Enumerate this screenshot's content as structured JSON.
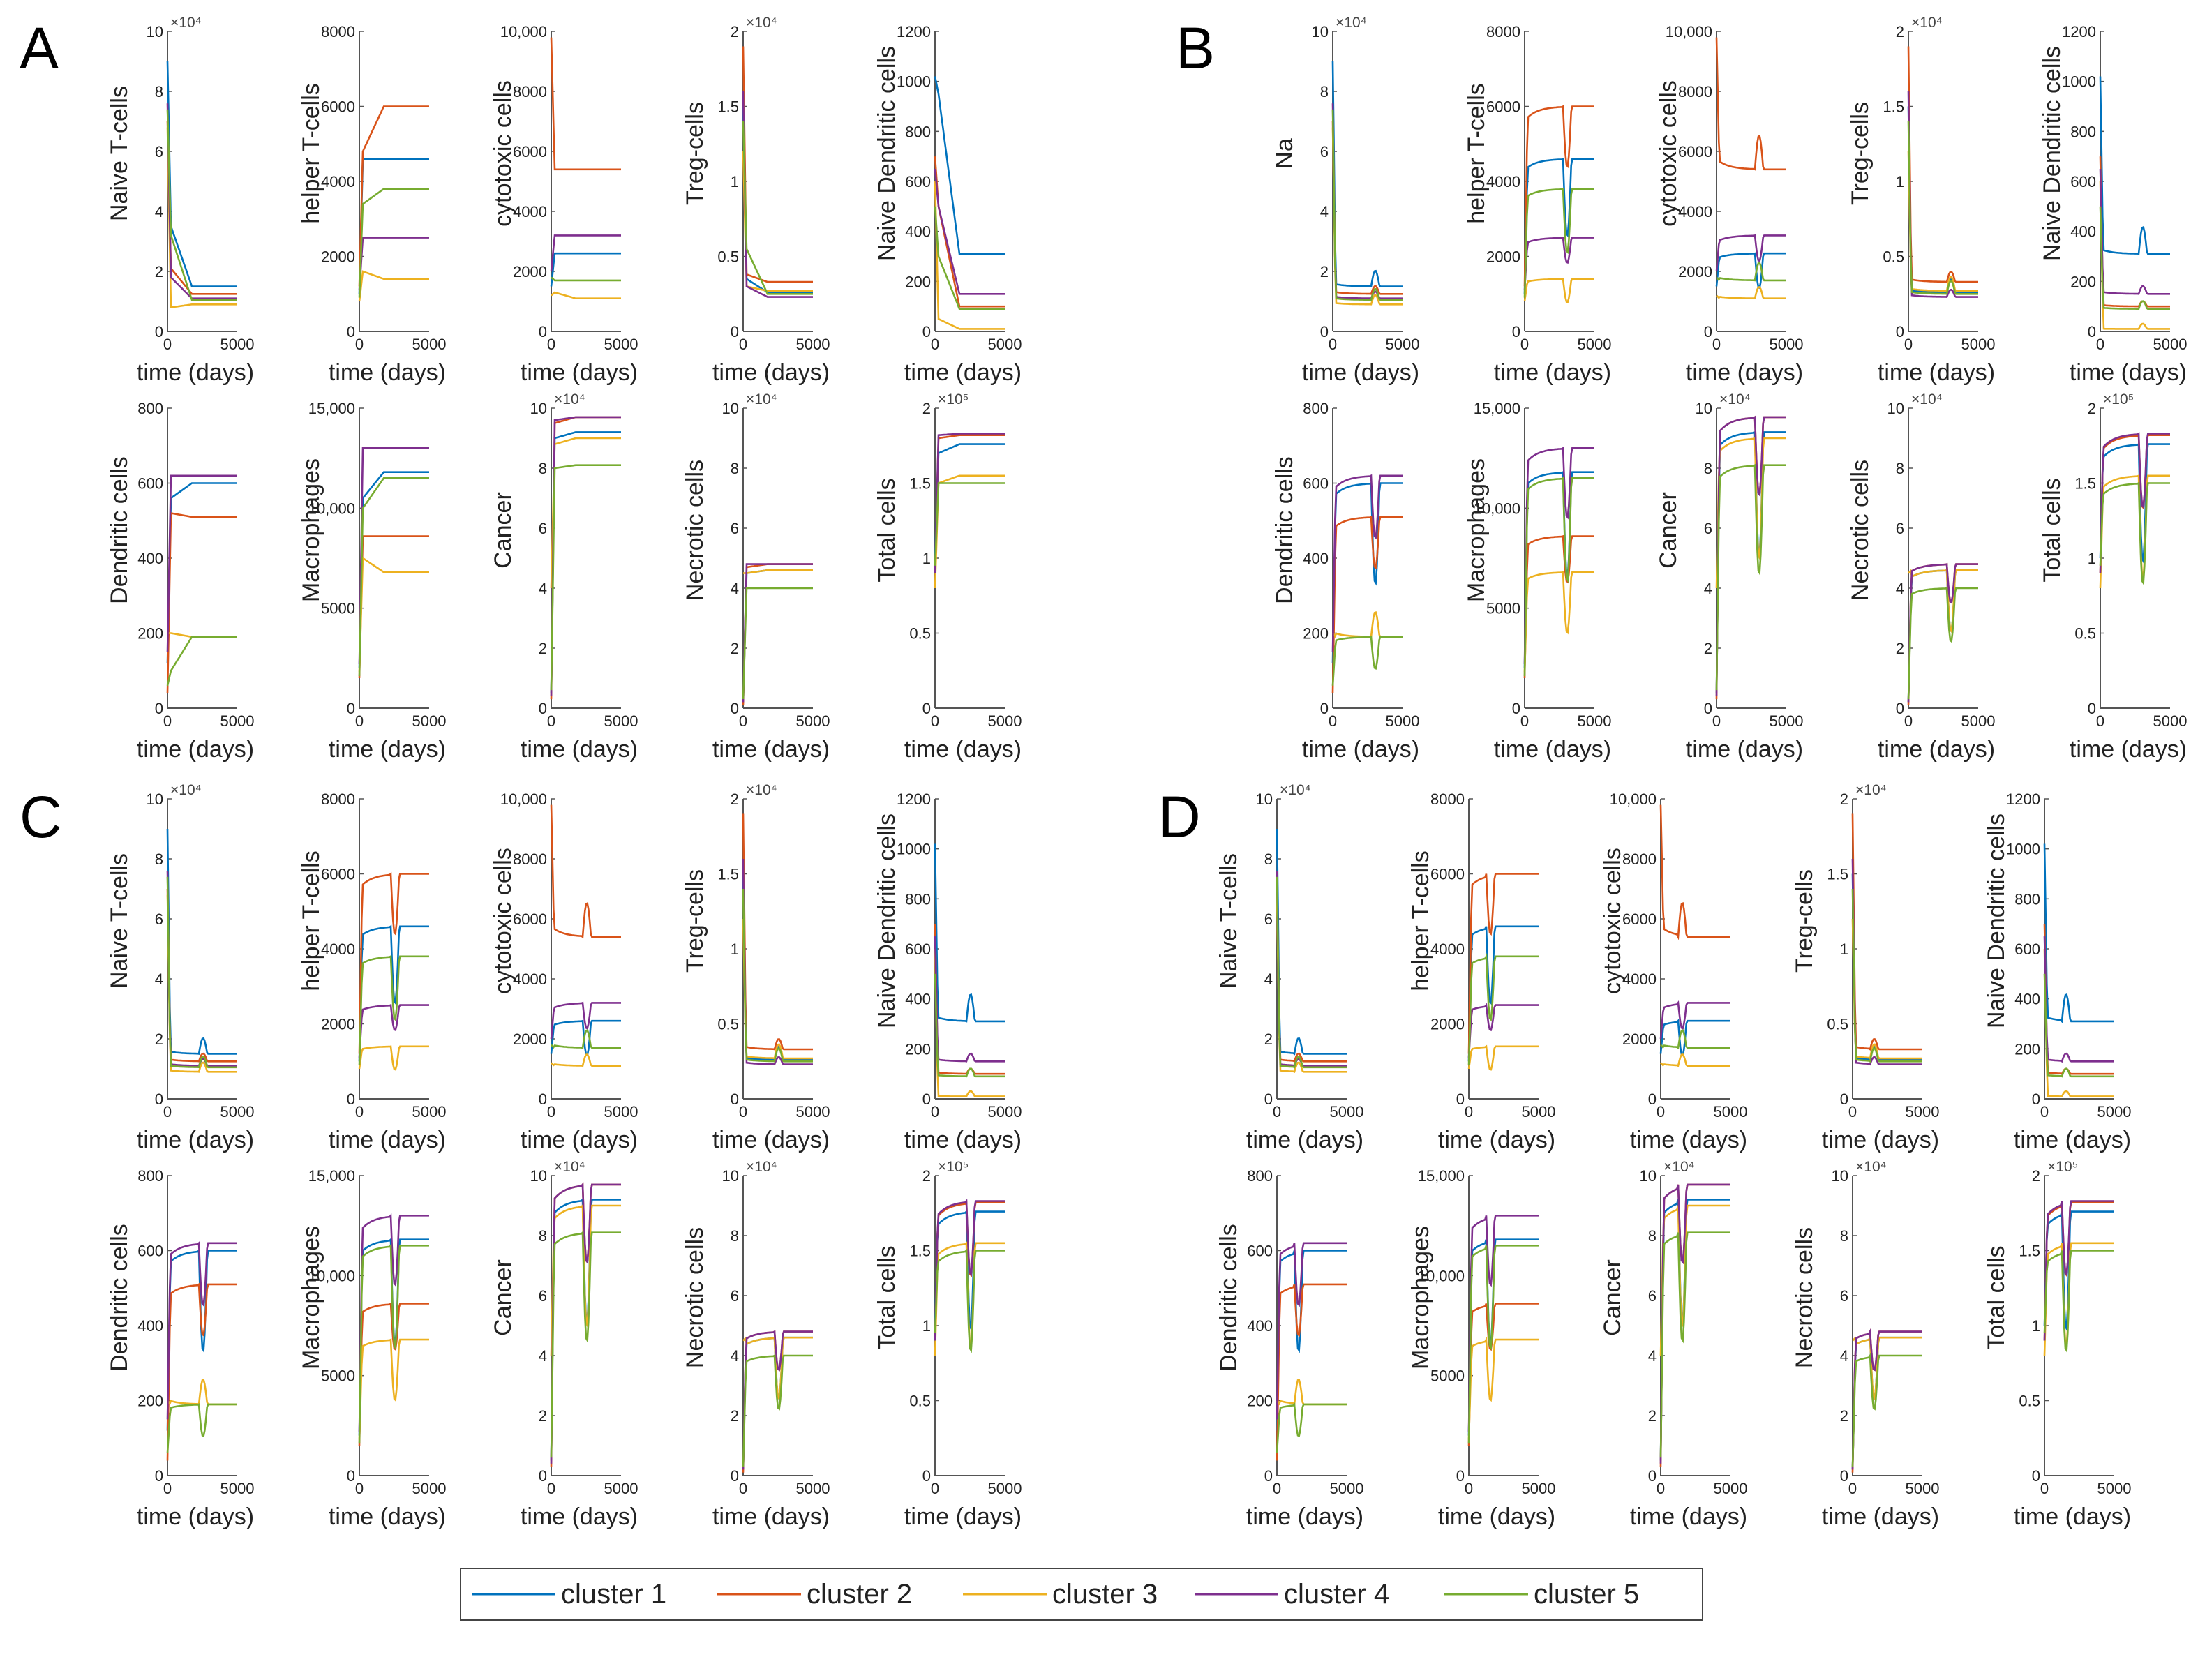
{
  "colors": {
    "cluster1": "#0072BD",
    "cluster2": "#D95319",
    "cluster3": "#EDB120",
    "cluster4": "#7E2F8E",
    "cluster5": "#77AC30"
  },
  "legend": [
    "cluster 1",
    "cluster 2",
    "cluster 3",
    "cluster 4",
    "cluster 5"
  ],
  "panel_labels": [
    "A",
    "B",
    "C",
    "D"
  ],
  "x_axis": {
    "label": "time (days)",
    "ticks": [
      "0",
      "5000"
    ],
    "range": [
      0,
      5000
    ]
  },
  "chart_data": {
    "type": "line",
    "panels": [
      "A",
      "B",
      "C",
      "D"
    ],
    "subplots": [
      {
        "key": "naive_t",
        "ylabel": "Naive T-cells",
        "ylabel_B": "Na",
        "ymax": 100000,
        "yticks": [
          "0",
          "2",
          "4",
          "6",
          "8",
          "10"
        ],
        "multiplier": "×10⁴",
        "start": [
          90000,
          70000,
          68000,
          76000,
          74000
        ],
        "steady": [
          15000,
          12500,
          9000,
          11000,
          10500
        ],
        "peakA": [
          35000,
          21000,
          8000,
          18000,
          32000
        ]
      },
      {
        "key": "helper_t",
        "ylabel": "helper T-cells",
        "ymax": 8000,
        "yticks": [
          "0",
          "2000",
          "4000",
          "6000",
          "8000"
        ],
        "multiplier": "",
        "start": [
          1000,
          1200,
          800,
          1100,
          900
        ],
        "steady": [
          4600,
          6000,
          1400,
          2500,
          3800
        ],
        "peakA": [
          4600,
          4800,
          1600,
          2500,
          3400
        ]
      },
      {
        "key": "cytotoxic",
        "ylabel": "cytotoxic cells",
        "ymax": 10000,
        "yticks": [
          "0",
          "2000",
          "4000",
          "6000",
          "8000",
          "10,000"
        ],
        "multiplier": "",
        "start": [
          1500,
          9800,
          1200,
          2000,
          1800
        ],
        "steady": [
          2600,
          5400,
          1100,
          3200,
          1700
        ],
        "peakA": [
          2600,
          5400,
          1300,
          3200,
          1700
        ]
      },
      {
        "key": "treg",
        "ylabel": "Treg-cells",
        "ymax": 20000,
        "yticks": [
          "0",
          "0.5",
          "1",
          "1.5",
          "2"
        ],
        "multiplier": "×10⁴",
        "start": [
          15000,
          19000,
          12000,
          16000,
          14000
        ],
        "steady": [
          2600,
          3300,
          2700,
          2300,
          2500
        ],
        "peakA": [
          3500,
          3800,
          3000,
          3000,
          5500
        ]
      },
      {
        "key": "naive_dc",
        "ylabel": "Naive Dendritic cells",
        "ymax": 1200,
        "yticks": [
          "0",
          "200",
          "400",
          "600",
          "800",
          "1000",
          "1200"
        ],
        "multiplier": "",
        "start": [
          1020,
          700,
          600,
          650,
          500
        ],
        "steady": [
          310,
          100,
          10,
          150,
          90
        ],
        "peakA": [
          950,
          500,
          50,
          500,
          300
        ]
      },
      {
        "key": "dc",
        "ylabel": "Dendritic cells",
        "ymax": 800,
        "yticks": [
          "0",
          "200",
          "400",
          "600",
          "800"
        ],
        "multiplier": "",
        "start": [
          120,
          40,
          200,
          150,
          60
        ],
        "steady": [
          600,
          510,
          190,
          620,
          190
        ],
        "peakA": [
          560,
          520,
          200,
          620,
          100
        ]
      },
      {
        "key": "macrophages",
        "ylabel": "Macrophages",
        "ymax": 15000,
        "yticks": [
          "0",
          "5000",
          "10,000",
          "15,000"
        ],
        "multiplier": "",
        "start": [
          2000,
          1500,
          1800,
          2200,
          1600
        ],
        "steady": [
          11800,
          8600,
          6800,
          13000,
          11500
        ],
        "peakA": [
          10500,
          8600,
          7500,
          13000,
          10000
        ]
      },
      {
        "key": "cancer",
        "ylabel": "Cancer",
        "ymax": 100000,
        "yticks": [
          "0",
          "2",
          "4",
          "6",
          "8",
          "10"
        ],
        "multiplier": "×10⁴",
        "start": [
          5000,
          3000,
          40000,
          4000,
          6000
        ],
        "steady": [
          92000,
          97000,
          90000,
          97000,
          81000
        ],
        "peakA": [
          90000,
          95000,
          88000,
          96000,
          80000
        ]
      },
      {
        "key": "necrotic",
        "ylabel": "Necrotic cells",
        "ymax": 100000,
        "yticks": [
          "0",
          "2",
          "4",
          "6",
          "8",
          "10"
        ],
        "multiplier": "×10⁴",
        "start": [
          2000,
          1000,
          45000,
          2000,
          3000
        ],
        "steady": [
          46000,
          48000,
          46000,
          48000,
          40000
        ],
        "peakA": [
          45000,
          47000,
          45000,
          48000,
          40000
        ]
      },
      {
        "key": "total",
        "ylabel": "Total cells",
        "ymax": 200000,
        "yticks": [
          "0",
          "0.5",
          "1",
          "1.5",
          "2"
        ],
        "multiplier": "×10⁵",
        "start": [
          100000,
          90000,
          80000,
          90000,
          95000
        ],
        "steady": [
          176000,
          182000,
          155000,
          183000,
          150000
        ],
        "peakA": [
          170000,
          180000,
          150000,
          182000,
          150000
        ]
      }
    ]
  }
}
